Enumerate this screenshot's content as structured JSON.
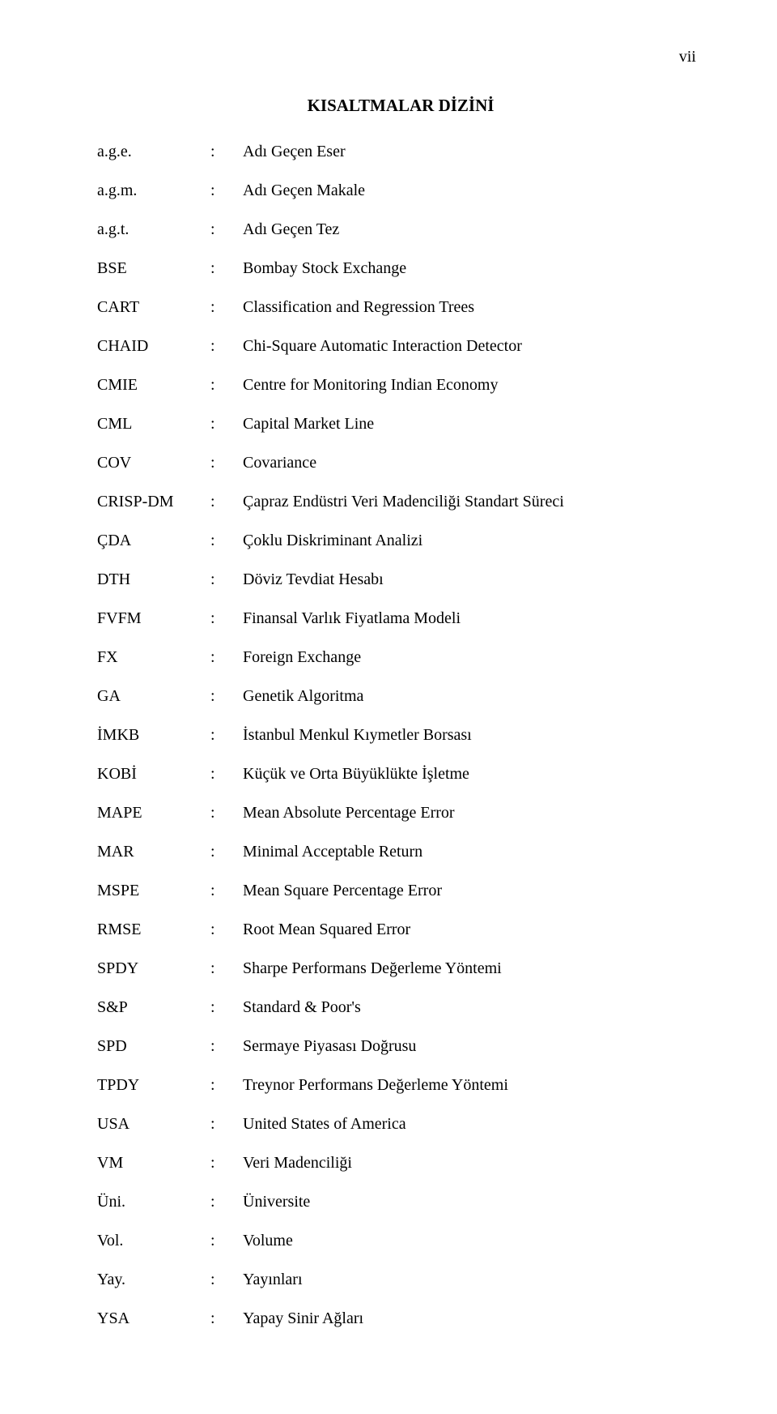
{
  "page_number": "vii",
  "title": "KISALTMALAR DİZİNİ",
  "entries": [
    {
      "abbr": "a.g.e.",
      "def": "Adı Geçen Eser"
    },
    {
      "abbr": "a.g.m.",
      "def": "Adı Geçen Makale"
    },
    {
      "abbr": "a.g.t.",
      "def": "Adı Geçen Tez"
    },
    {
      "abbr": "BSE",
      "def": "Bombay Stock Exchange"
    },
    {
      "abbr": "CART",
      "def": "Classification and Regression Trees"
    },
    {
      "abbr": "CHAID",
      "def": "Chi-Square Automatic Interaction Detector"
    },
    {
      "abbr": "CMIE",
      "def": "Centre for Monitoring Indian Economy"
    },
    {
      "abbr": "CML",
      "def": "Capital Market Line"
    },
    {
      "abbr": "COV",
      "def": "Covariance"
    },
    {
      "abbr": "CRISP-DM",
      "def": "Çapraz Endüstri Veri Madenciliği Standart Süreci"
    },
    {
      "abbr": "ÇDA",
      "def": "Çoklu Diskriminant Analizi"
    },
    {
      "abbr": "DTH",
      "def": "Döviz Tevdiat Hesabı"
    },
    {
      "abbr": "FVFM",
      "def": "Finansal Varlık Fiyatlama Modeli"
    },
    {
      "abbr": "FX",
      "def": "Foreign Exchange"
    },
    {
      "abbr": "GA",
      "def": "Genetik Algoritma"
    },
    {
      "abbr": "İMKB",
      "def": "İstanbul Menkul Kıymetler Borsası"
    },
    {
      "abbr": "KOBİ",
      "def": "Küçük ve Orta Büyüklükte İşletme"
    },
    {
      "abbr": "MAPE",
      "def": "Mean Absolute Percentage Error"
    },
    {
      "abbr": "MAR",
      "def": "Minimal Acceptable Return"
    },
    {
      "abbr": "MSPE",
      "def": "Mean Square Percentage Error"
    },
    {
      "abbr": "RMSE",
      "def": "Root Mean Squared Error"
    },
    {
      "abbr": "SPDY",
      "def": "Sharpe Performans Değerleme Yöntemi"
    },
    {
      "abbr": "S&P",
      "def": "Standard & Poor's"
    },
    {
      "abbr": "SPD",
      "def": "Sermaye Piyasası Doğrusu"
    },
    {
      "abbr": "TPDY",
      "def": "Treynor Performans Değerleme Yöntemi"
    },
    {
      "abbr": "USA",
      "def": "United States of America"
    },
    {
      "abbr": "VM",
      "def": "Veri Madenciliği"
    },
    {
      "abbr": "Üni.",
      "def": "Üniversite"
    },
    {
      "abbr": "Vol.",
      "def": "Volume"
    },
    {
      "abbr": "Yay.",
      "def": "Yayınları"
    },
    {
      "abbr": "YSA",
      "def": "Yapay Sinir Ağları"
    }
  ],
  "colon": ":"
}
